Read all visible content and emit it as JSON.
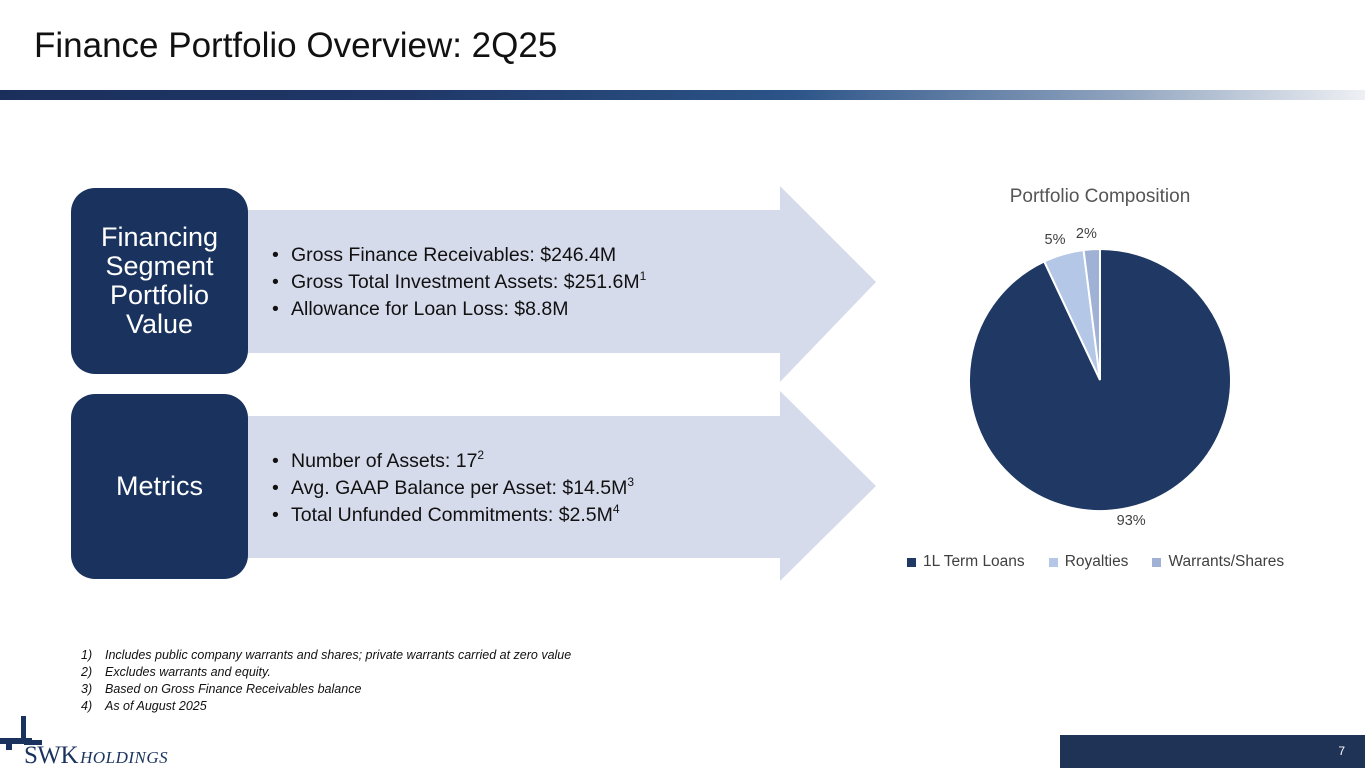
{
  "title": "Finance Portfolio Overview: 2Q25",
  "sections": [
    {
      "label": "Financing Segment Portfolio Value",
      "bullets": [
        {
          "text": "Gross Finance Receivables: $246.4M",
          "sup": ""
        },
        {
          "text": "Gross Total Investment Assets: $251.6M",
          "sup": "1"
        },
        {
          "text": "Allowance for Loan Loss: $8.8M",
          "sup": ""
        }
      ]
    },
    {
      "label": "Metrics",
      "bullets": [
        {
          "text": "Number of Assets: 17",
          "sup": "2"
        },
        {
          "text": "Avg. GAAP Balance per Asset: $14.5M",
          "sup": "3"
        },
        {
          "text": "Total Unfunded Commitments: $2.5M",
          "sup": "4"
        }
      ]
    }
  ],
  "chart_data": {
    "type": "pie",
    "title": "Portfolio Composition",
    "categories": [
      "1L Term Loans",
      "Royalties",
      "Warrants/Shares"
    ],
    "values": [
      93,
      5,
      2
    ],
    "labels": [
      "93%",
      "5%",
      "2%"
    ],
    "colors": [
      "#1f3864",
      "#b4c7e7",
      "#9fb1d4"
    ],
    "legend": "bottom"
  },
  "footnotes": [
    {
      "num": "1)",
      "text": "Includes public company warrants and shares; private warrants carried at zero value"
    },
    {
      "num": "2)",
      "text": "Excludes warrants and equity."
    },
    {
      "num": "3)",
      "text": "Based on Gross Finance Receivables balance"
    },
    {
      "num": "4)",
      "text": "As of August 2025"
    }
  ],
  "logo": {
    "name": "SWK",
    "suffix": "HOLDINGS"
  },
  "page_number": "7"
}
